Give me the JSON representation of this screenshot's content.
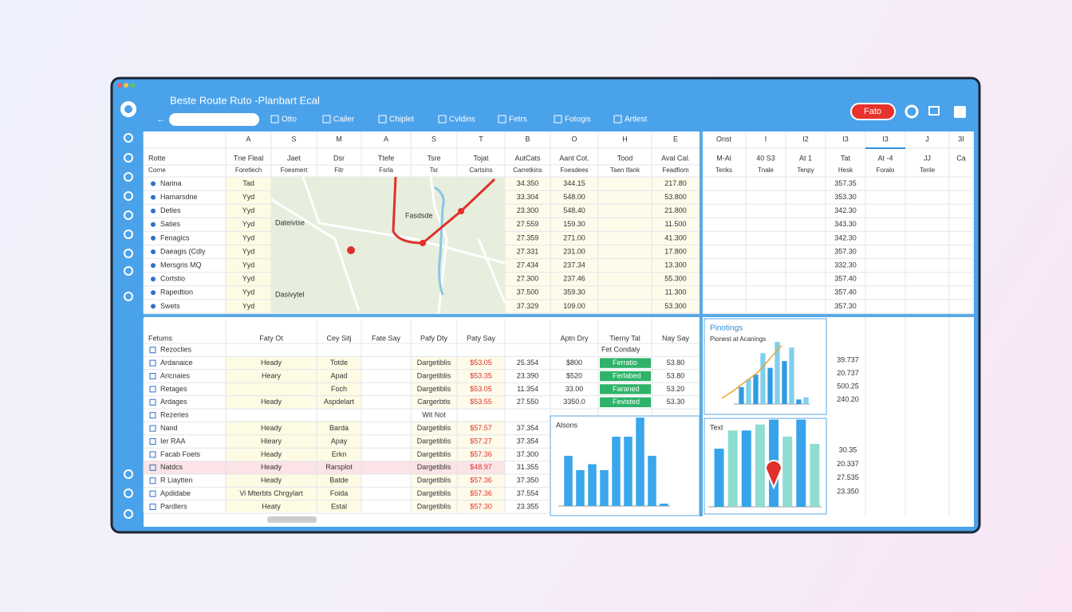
{
  "header": {
    "title": "Beste Route Ruto -Planbart Ecal",
    "toolbar": [
      "Otto",
      "Cailer",
      "Chiplet",
      "Cvldins",
      "Fetrs",
      "Fotogis",
      "Artlest"
    ],
    "badge": "Fato"
  },
  "top_table": {
    "columns": [
      "A",
      "S",
      "M",
      "A",
      "S",
      "T",
      "B",
      "O",
      "H",
      "E"
    ],
    "headers": [
      [
        "Rotte",
        "Tne Fleal",
        "Jaet",
        "Dsr",
        "Ttefe",
        "Tsre",
        "Tojat",
        "AutCats",
        "Aant Cot.",
        "Tood",
        "Aval Cal."
      ],
      [
        "Corne",
        "Foretlech",
        "Foesmert",
        "Fitr",
        "Fsrla",
        "Tsr",
        "Cartsins",
        "Carretkins",
        "Foesdees",
        "Taen Ifank",
        "Feadfiom"
      ]
    ],
    "rows": [
      [
        "Narina",
        "Tad",
        "34.350",
        "344.15",
        "217.80"
      ],
      [
        "Hamarsdne",
        "Yyd",
        "33.304",
        "548.00",
        "53.800"
      ],
      [
        "Detles",
        "Yyd",
        "23.300",
        "548.40",
        "21.800"
      ],
      [
        "Saties",
        "Yyd",
        "27.559",
        "159.30",
        "11.500"
      ],
      [
        "Fenagics",
        "Yyd",
        "27.359",
        "271.00",
        "41.300"
      ],
      [
        "Daeagis (Cdly",
        "Yyd",
        "27.331",
        "231.00",
        "17.800"
      ],
      [
        "Mersgris MQ",
        "Yyd",
        "27.434",
        "237.34",
        "13.300"
      ],
      [
        "Cortstio",
        "Yyd",
        "27.300",
        "237.46",
        "55.300"
      ],
      [
        "Rapedtion",
        "Yyd",
        "37.500",
        "359.30",
        "11.300"
      ],
      [
        "Swets",
        "Yyd",
        "37.329",
        "109.00",
        "53.300"
      ]
    ],
    "map_labels": [
      "Dateivise",
      "Dasivytel",
      "Fasdsde"
    ]
  },
  "right_table": {
    "columns": [
      "Onst",
      "I",
      "I2",
      "I3",
      "I3",
      "J",
      "3I"
    ],
    "headers": [
      [
        "M-Al",
        "40 S3",
        "At 1",
        "Tat",
        "At -4",
        "JJ",
        "Ca"
      ],
      [
        "Tenks",
        "Tnale",
        "Tenpy",
        "Hesk",
        "Foralo",
        "Tenle"
      ]
    ],
    "values": [
      "357.35",
      "353.30",
      "342.30",
      "343.30",
      "342.30",
      "357.30",
      "332.30",
      "357.40",
      "357.40",
      "357.30"
    ]
  },
  "bottom_table": {
    "headers": [
      "Fetums",
      "Faty Ot",
      "Cey Sitj",
      "Fate Say",
      "Pafy Dty",
      "Paty Say",
      null,
      "Aptn Dry",
      "Tierny Tal",
      "Nay Say"
    ],
    "rows": [
      [
        "Rezoclies",
        null,
        null,
        null,
        null,
        null,
        null,
        null,
        "Fet Condaly",
        null
      ],
      [
        "Ardanaice",
        "Heady",
        "Totde",
        null,
        "Dargetiblis",
        "$53.05",
        "25.354",
        "$800",
        "Ferratio",
        "53.80"
      ],
      [
        "Aricnaies",
        "Heary",
        "Apad",
        null,
        "Dargetiblis",
        "$53.35",
        "23.390",
        "$520",
        "Ferlabed",
        "53.80"
      ],
      [
        "Retages",
        null,
        "Foch",
        null,
        "Dargetiblis",
        "$53.05",
        "11.354",
        "33.00",
        "Faraned",
        "53.20"
      ],
      [
        "Ardages",
        "Heady",
        "Aspdelart",
        null,
        "Cargerbtis",
        "$53.55",
        "27.550",
        "3350.0",
        "Fevisted",
        "53.30"
      ],
      [
        "Rezeries",
        null,
        null,
        null,
        "Wit Not",
        null,
        null
      ],
      [
        "Nand",
        "Heady",
        "Barda",
        null,
        "Dargetiblis",
        "$57.57",
        "37.354"
      ],
      [
        "Ier RAA",
        "Hieary",
        "Apay",
        null,
        "Dargetiblis",
        "$57.27",
        "37.354"
      ],
      [
        "Facab Foets",
        "Heady",
        "Erkn",
        null,
        "Dargetiblis",
        "$57.36",
        "37.300"
      ],
      [
        "Natdcs",
        "Heady",
        "Rarsplot",
        null,
        "Dargetiblis",
        "$48.97",
        "31.355"
      ],
      [
        "R Liaytten",
        "Heady",
        "Batde",
        null,
        "Dargetiblis",
        "$57.36",
        "37.350"
      ],
      [
        "Apdidabe",
        "Vi Mterbts Chrgylart",
        "Foida",
        null,
        "Dargetiblis",
        "$57.36",
        "37.554"
      ],
      [
        "Pardlers",
        "Heaty",
        "Estal",
        null,
        "Dargetiblis",
        "$57.30",
        "23.355"
      ]
    ]
  },
  "side_values": {
    "upper": [
      "39.737",
      "20.737",
      "500.25",
      "240.20"
    ],
    "lower": [
      "30.35",
      "20.337",
      "27.535",
      "23.350"
    ]
  },
  "charts": [
    {
      "type": "bar",
      "title": "Pinotings",
      "subtitle": "Pionest at Acanings",
      "values": [
        15,
        22,
        26,
        45,
        32,
        55,
        38,
        50,
        4,
        6
      ],
      "ylim": [
        0,
        70
      ],
      "color": "#2f9be6",
      "alt_color": "#7fd0ec",
      "line_color": "#f0a030",
      "line_values": [
        5,
        12,
        20,
        28,
        40,
        52
      ]
    },
    {
      "type": "bar",
      "title": "Alsons",
      "values": [
        42,
        30,
        35,
        30,
        58,
        58,
        74,
        42,
        2
      ],
      "ylim": [
        0,
        80
      ],
      "color": "#3aa6ec",
      "alt_color": "#3aa6ec"
    },
    {
      "type": "bar",
      "title": "Text",
      "values": [
        48,
        63,
        63,
        68,
        72,
        58,
        72,
        52
      ],
      "ylim": [
        0,
        80
      ],
      "color": "#36a3ea",
      "alt_color": "#8fdcd0"
    }
  ]
}
